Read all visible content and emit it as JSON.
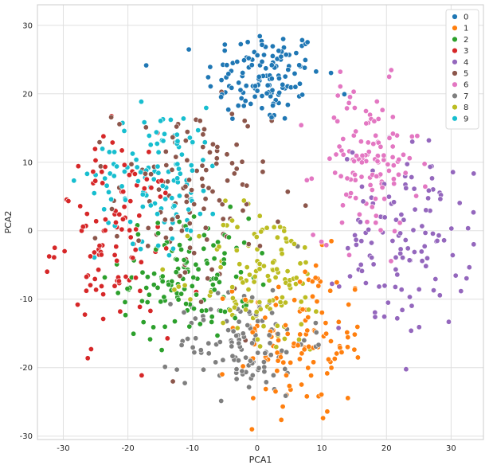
{
  "chart_data": {
    "type": "scatter",
    "title": "",
    "xlabel": "PCA1",
    "ylabel": "PCA2",
    "xlim": [
      -34,
      35
    ],
    "ylim": [
      -30.5,
      33
    ],
    "xticks": [
      -30,
      -20,
      -10,
      0,
      10,
      20,
      30
    ],
    "yticks": [
      -30,
      -20,
      -10,
      0,
      10,
      20,
      30
    ],
    "grid": true,
    "legend_position": "top-right",
    "series": [
      {
        "name": "0",
        "color": "#1f77b4",
        "center": [
          1,
          22.5
        ],
        "spread": [
          4.5,
          3.5
        ],
        "count": 130
      },
      {
        "name": "1",
        "color": "#ff7f0e",
        "center": [
          7,
          -16
        ],
        "spread": [
          5,
          6
        ],
        "count": 120
      },
      {
        "name": "2",
        "color": "#2ca02c",
        "center": [
          -11,
          -7
        ],
        "spread": [
          5,
          4.5
        ],
        "count": 130
      },
      {
        "name": "3",
        "color": "#d62728",
        "center": [
          -22,
          -1
        ],
        "spread": [
          4.5,
          7
        ],
        "count": 110
      },
      {
        "name": "4",
        "color": "#9467bd",
        "center": [
          23,
          -1
        ],
        "spread": [
          5,
          7
        ],
        "count": 120
      },
      {
        "name": "5",
        "color": "#8c564b",
        "center": [
          -10,
          5
        ],
        "spread": [
          6,
          7
        ],
        "count": 120
      },
      {
        "name": "6",
        "color": "#e377c2",
        "center": [
          17,
          10
        ],
        "spread": [
          4,
          5.5
        ],
        "count": 120
      },
      {
        "name": "7",
        "color": "#7f7f7f",
        "center": [
          -2,
          -16
        ],
        "spread": [
          5,
          4
        ],
        "count": 120
      },
      {
        "name": "8",
        "color": "#bcbd22",
        "center": [
          1,
          -7
        ],
        "spread": [
          5,
          5.5
        ],
        "count": 120
      },
      {
        "name": "9",
        "color": "#17becf",
        "center": [
          -15,
          8
        ],
        "spread": [
          5,
          5
        ],
        "count": 120
      }
    ]
  }
}
